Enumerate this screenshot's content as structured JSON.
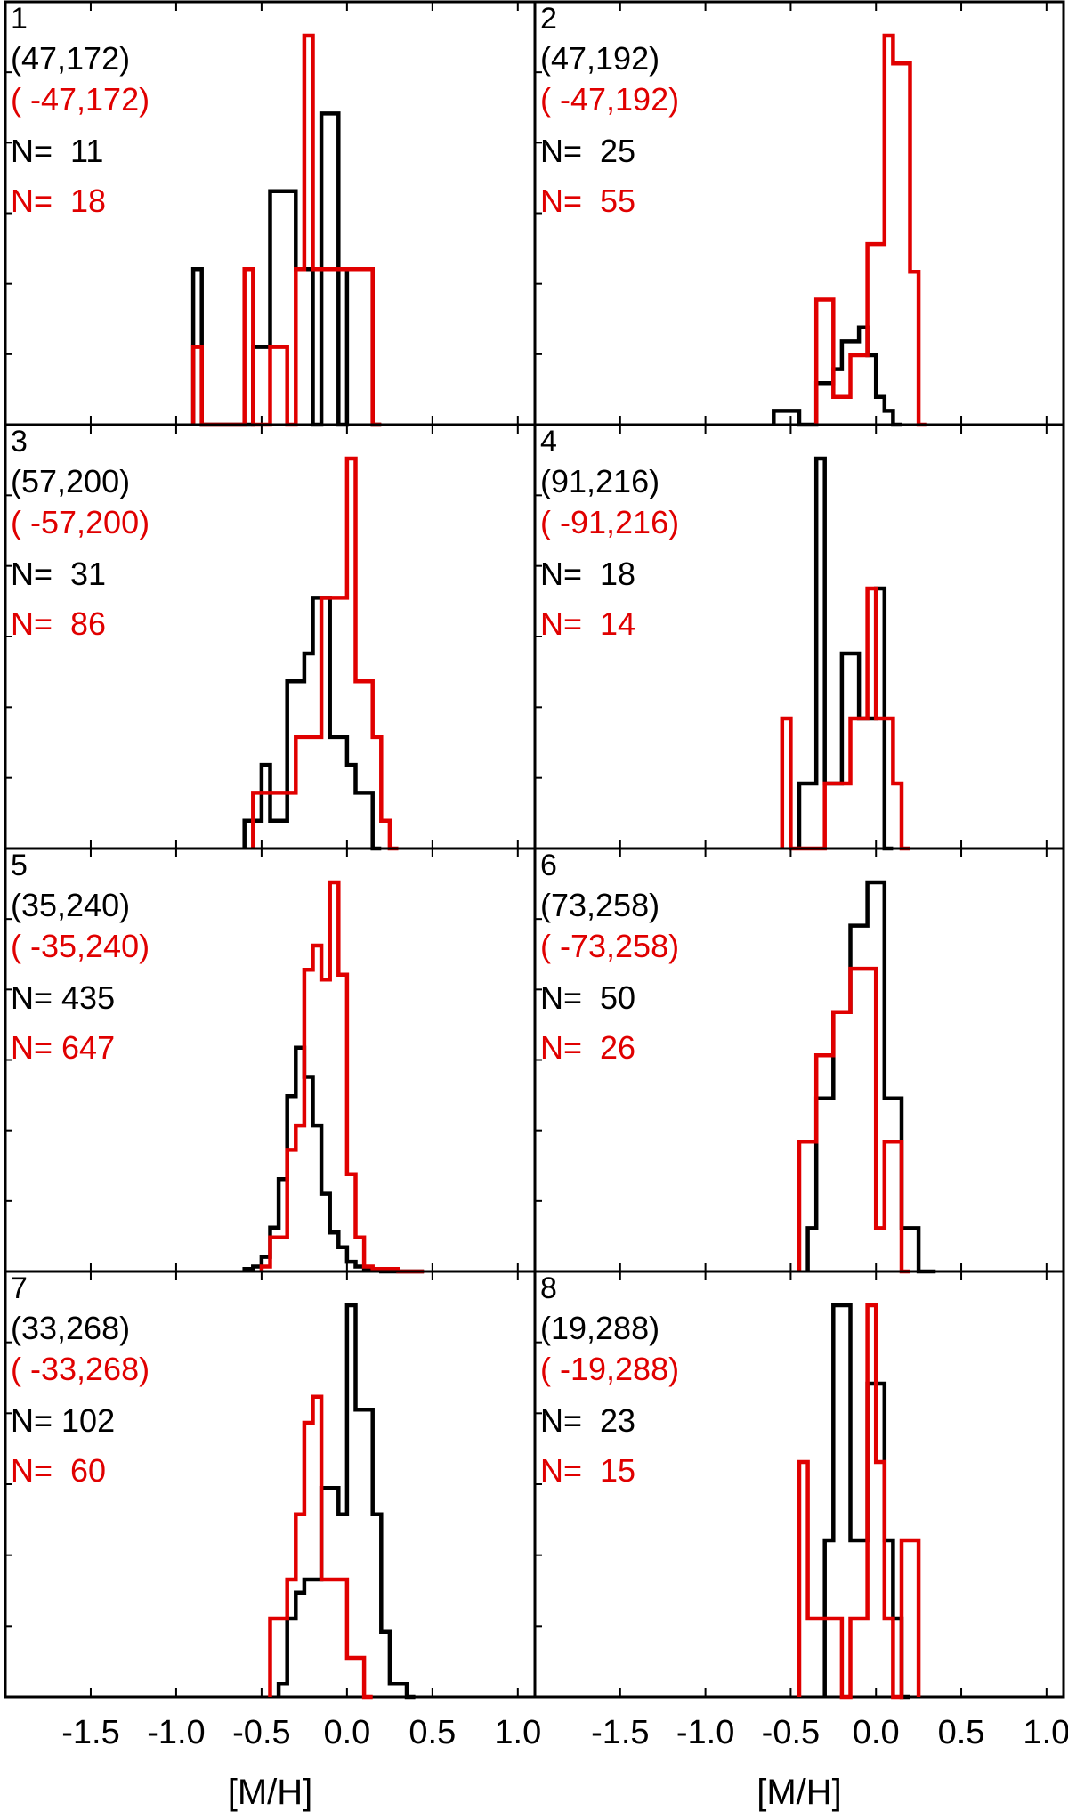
{
  "figure": {
    "xlabel": "[M/H]",
    "x_tick_labels": [
      "-1.5",
      "-1.0",
      "-0.5",
      "0.0",
      "0.5",
      "1.0"
    ],
    "colors": {
      "black": "#000000",
      "red": "#e00000"
    }
  },
  "chart_data": [
    {
      "type": "histogram",
      "panel": "1",
      "coord_black": "(47,172)",
      "coord_red": "( -47,172)",
      "n_black": "N=  11",
      "n_red": "N=  18",
      "xlabel": "[M/H]",
      "xlim": [
        -2.0,
        1.1
      ],
      "bin_width": 0.05,
      "series": [
        {
          "color": "black",
          "edges": [
            -0.9,
            -0.85,
            -0.8,
            -0.6,
            -0.55,
            -0.45,
            -0.35,
            -0.3,
            -0.25,
            -0.2,
            -0.15,
            -0.05,
            0.0,
            0.05,
            0.15,
            0.2
          ],
          "counts": [
            2,
            0,
            0,
            0,
            1,
            3,
            3,
            2,
            2,
            0,
            4,
            0,
            2,
            2,
            0
          ]
        },
        {
          "color": "red",
          "edges": [
            -0.9,
            -0.85,
            -0.75,
            -0.7,
            -0.6,
            -0.55,
            -0.45,
            -0.35,
            -0.3,
            -0.25,
            -0.2,
            -0.1,
            -0.05,
            0.0,
            0.15,
            0.2
          ],
          "counts": [
            1,
            0,
            0,
            0,
            2,
            0,
            1,
            0,
            2,
            5,
            2,
            2,
            2,
            2,
            0
          ]
        }
      ]
    },
    {
      "type": "histogram",
      "panel": "2",
      "coord_black": "(47,192)",
      "coord_red": "( -47,192)",
      "n_black": "N=  25",
      "n_red": "N=  55",
      "xlabel": "[M/H]",
      "xlim": [
        -2.0,
        1.1
      ],
      "bin_width": 0.05,
      "series": [
        {
          "color": "black",
          "edges": [
            -0.6,
            -0.55,
            -0.5,
            -0.45,
            -0.4,
            -0.35,
            -0.3,
            -0.25,
            -0.2,
            -0.15,
            -0.1,
            -0.05,
            0.0,
            0.05,
            0.1,
            0.15
          ],
          "counts": [
            1,
            1,
            1,
            0,
            0,
            3,
            3,
            4,
            6,
            6,
            7,
            5,
            2,
            1,
            0
          ]
        },
        {
          "color": "red",
          "edges": [
            -0.35,
            -0.3,
            -0.25,
            -0.2,
            -0.15,
            -0.1,
            -0.05,
            0.0,
            0.05,
            0.1,
            0.15,
            0.2,
            0.25,
            0.3
          ],
          "counts": [
            9,
            9,
            2,
            2,
            5,
            5,
            13,
            13,
            28,
            26,
            26,
            11,
            0
          ]
        }
      ]
    },
    {
      "type": "histogram",
      "panel": "3",
      "coord_black": "(57,200)",
      "coord_red": "( -57,200)",
      "n_black": "N=  31",
      "n_red": "N=  86",
      "xlabel": "[M/H]",
      "xlim": [
        -2.0,
        1.1
      ],
      "bin_width": 0.05,
      "series": [
        {
          "color": "black",
          "edges": [
            -0.6,
            -0.55,
            -0.5,
            -0.45,
            -0.4,
            -0.35,
            -0.3,
            -0.25,
            -0.2,
            -0.15,
            -0.1,
            -0.05,
            0.0,
            0.05,
            0.1,
            0.15,
            0.2
          ],
          "counts": [
            1,
            1,
            3,
            1,
            1,
            6,
            6,
            7,
            9,
            9,
            4,
            4,
            3,
            2,
            2,
            0
          ]
        },
        {
          "color": "red",
          "edges": [
            -0.55,
            -0.5,
            -0.4,
            -0.35,
            -0.3,
            -0.2,
            -0.15,
            -0.1,
            -0.05,
            0.0,
            0.05,
            0.1,
            0.15,
            0.2,
            0.25,
            0.3
          ],
          "counts": [
            2,
            2,
            2,
            2,
            4,
            4,
            9,
            9,
            9,
            14,
            6,
            6,
            4,
            1,
            0
          ]
        }
      ]
    },
    {
      "type": "histogram",
      "panel": "4",
      "coord_black": "(91,216)",
      "coord_red": "( -91,216)",
      "n_black": "N=  18",
      "n_red": "N=  14",
      "xlabel": "[M/H]",
      "xlim": [
        -2.0,
        1.1
      ],
      "bin_width": 0.05,
      "series": [
        {
          "color": "black",
          "edges": [
            -0.45,
            -0.4,
            -0.35,
            -0.3,
            -0.25,
            -0.2,
            -0.15,
            -0.1,
            -0.05,
            0.0,
            0.05,
            0.1
          ],
          "counts": [
            1,
            1,
            6,
            1,
            1,
            3,
            3,
            2,
            2,
            4,
            0
          ]
        },
        {
          "color": "red",
          "edges": [
            -0.55,
            -0.5,
            -0.45,
            -0.4,
            -0.35,
            -0.3,
            -0.25,
            -0.2,
            -0.15,
            -0.1,
            -0.05,
            0.0,
            0.05,
            0.1,
            0.15,
            0.2
          ],
          "counts": [
            2,
            0,
            0,
            0,
            0,
            1,
            1,
            1,
            2,
            2,
            4,
            2,
            2,
            1,
            0
          ]
        }
      ]
    },
    {
      "type": "histogram",
      "panel": "5",
      "coord_black": "(35,240)",
      "coord_red": "( -35,240)",
      "n_black": "N= 435",
      "n_red": "N= 647",
      "xlabel": "[M/H]",
      "xlim": [
        -2.0,
        1.1
      ],
      "bin_width": 0.05,
      "series": [
        {
          "color": "black",
          "edges": [
            -0.6,
            -0.55,
            -0.5,
            -0.45,
            -0.4,
            -0.35,
            -0.3,
            -0.25,
            -0.2,
            -0.15,
            -0.1,
            -0.05,
            0.0,
            0.05,
            0.1,
            0.15,
            0.2,
            0.25,
            0.3,
            0.35,
            0.4,
            0.45
          ],
          "counts": [
            1,
            2,
            6,
            18,
            38,
            72,
            92,
            80,
            60,
            32,
            16,
            10,
            4,
            2,
            1,
            1,
            0,
            0,
            0,
            0,
            0
          ]
        },
        {
          "color": "red",
          "edges": [
            -0.5,
            -0.45,
            -0.4,
            -0.35,
            -0.3,
            -0.25,
            -0.2,
            -0.15,
            -0.1,
            -0.05,
            0.0,
            0.05,
            0.1,
            0.15,
            0.2,
            0.25,
            0.3,
            0.35,
            0.4,
            0.45
          ],
          "counts": [
            2,
            14,
            14,
            50,
            60,
            124,
            134,
            120,
            160,
            122,
            40,
            14,
            2,
            1,
            1,
            1,
            0,
            0,
            0
          ]
        }
      ]
    },
    {
      "type": "histogram",
      "panel": "6",
      "coord_black": "(73,258)",
      "coord_red": "( -73,258)",
      "n_black": "N=  50",
      "n_red": "N=  26",
      "xlabel": "[M/H]",
      "xlim": [
        -2.0,
        1.1
      ],
      "bin_width": 0.05,
      "series": [
        {
          "color": "black",
          "edges": [
            -0.4,
            -0.35,
            -0.3,
            -0.25,
            -0.2,
            -0.15,
            -0.1,
            -0.05,
            0.0,
            0.05,
            0.1,
            0.15,
            0.2,
            0.25,
            0.3,
            0.35
          ],
          "counts": [
            1,
            4,
            4,
            6,
            6,
            8,
            8,
            9,
            9,
            4,
            4,
            1,
            1,
            0,
            0
          ]
        },
        {
          "color": "red",
          "edges": [
            -0.45,
            -0.4,
            -0.35,
            -0.3,
            -0.25,
            -0.2,
            -0.15,
            -0.1,
            -0.05,
            0.0,
            0.05,
            0.1,
            0.15,
            0.2
          ],
          "counts": [
            3,
            3,
            5,
            5,
            6,
            6,
            7,
            7,
            7,
            1,
            3,
            3,
            0
          ]
        }
      ]
    },
    {
      "type": "histogram",
      "panel": "7",
      "coord_black": "(33,268)",
      "coord_red": "( -33,268)",
      "n_black": "N= 102",
      "n_red": "N=  60",
      "xlabel": "[M/H]",
      "xlim": [
        -2.0,
        1.1
      ],
      "bin_width": 0.05,
      "series": [
        {
          "color": "black",
          "edges": [
            -0.4,
            -0.35,
            -0.3,
            -0.25,
            -0.2,
            -0.15,
            -0.1,
            -0.05,
            0.0,
            0.05,
            0.1,
            0.15,
            0.2,
            0.25,
            0.3,
            0.35,
            0.4
          ],
          "counts": [
            1,
            6,
            8,
            9,
            9,
            16,
            16,
            14,
            30,
            22,
            22,
            14,
            5,
            1,
            1,
            0
          ]
        },
        {
          "color": "red",
          "edges": [
            -0.45,
            -0.4,
            -0.35,
            -0.3,
            -0.25,
            -0.2,
            -0.15,
            -0.1,
            -0.05,
            0.0,
            0.05,
            0.1,
            0.15
          ],
          "counts": [
            6,
            6,
            9,
            14,
            21,
            23,
            9,
            9,
            9,
            3,
            3,
            0
          ]
        }
      ]
    },
    {
      "type": "histogram",
      "panel": "8",
      "coord_black": "(19,288)",
      "coord_red": "( -19,288)",
      "n_black": "N=  23",
      "n_red": "N=  15",
      "xlabel": "[M/H]",
      "xlim": [
        -2.0,
        1.1
      ],
      "bin_width": 0.05,
      "series": [
        {
          "color": "black",
          "edges": [
            -0.3,
            -0.25,
            -0.2,
            -0.15,
            -0.1,
            -0.05,
            0.0,
            0.05,
            0.1,
            0.15,
            0.2
          ],
          "counts": [
            2,
            5,
            5,
            2,
            2,
            4,
            4,
            2,
            1,
            0
          ]
        },
        {
          "color": "red",
          "edges": [
            -0.45,
            -0.4,
            -0.35,
            -0.3,
            -0.25,
            -0.2,
            -0.15,
            -0.1,
            -0.05,
            0.0,
            0.05,
            0.1,
            0.15,
            0.2,
            0.25
          ],
          "counts": [
            3,
            1,
            1,
            1,
            1,
            0,
            1,
            1,
            5,
            3,
            1,
            0,
            2,
            2,
            0
          ]
        }
      ]
    }
  ]
}
